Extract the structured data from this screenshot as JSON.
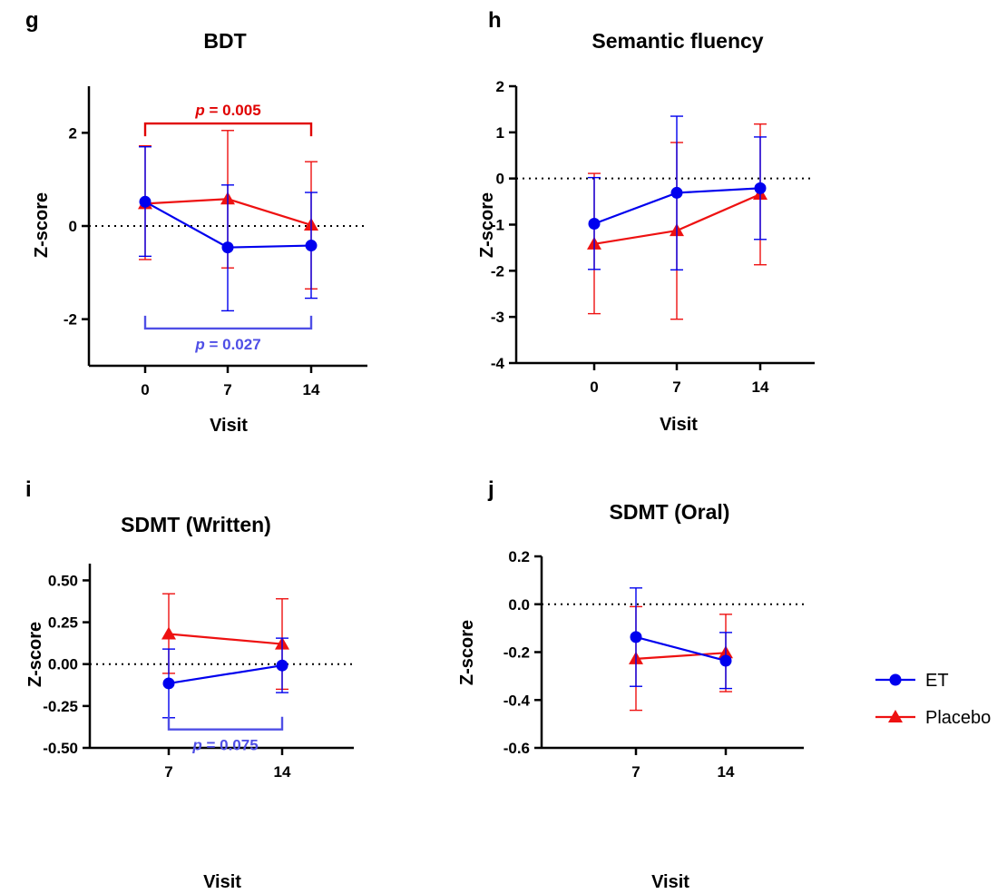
{
  "colors": {
    "et": "#0000ee",
    "placebo": "#ee1111",
    "annotation_red": "#e00000",
    "annotation_blue": "#4f4fe6"
  },
  "legend": [
    {
      "name": "ET",
      "marker": "circle",
      "color": "#0000ee"
    },
    {
      "name": "Placebo",
      "marker": "triangle",
      "color": "#ee1111"
    }
  ],
  "chart_data": [
    {
      "panel": "g",
      "type": "line",
      "title": "BDT",
      "xlabel": "Visit",
      "ylabel": "Z-score",
      "categories": [
        "0",
        "7",
        "14"
      ],
      "ylim": [
        -3,
        3
      ],
      "yticks": [
        "-2",
        "0",
        "2"
      ],
      "ytick_values": [
        -2,
        0,
        2
      ],
      "reference_line": 0,
      "series": [
        {
          "name": "ET",
          "marker": "circle",
          "values": [
            0.52,
            -0.46,
            -0.42
          ],
          "err_low": [
            -0.65,
            -1.82,
            -1.55
          ],
          "err_high": [
            1.7,
            0.88,
            0.72
          ]
        },
        {
          "name": "Placebo",
          "marker": "triangle",
          "values": [
            0.48,
            0.58,
            0.02
          ],
          "err_low": [
            -0.72,
            -0.9,
            -1.35
          ],
          "err_high": [
            1.72,
            2.05,
            1.38
          ]
        }
      ],
      "annotations": [
        {
          "text": "p = 0.005",
          "series": "Placebo",
          "from": "0",
          "to": "14",
          "position": "top",
          "level": 2.2
        },
        {
          "text": "p = 0.027",
          "series": "ET",
          "from": "0",
          "to": "14",
          "position": "bottom",
          "level": -2.2
        }
      ]
    },
    {
      "panel": "h",
      "type": "line",
      "title": "Semantic fluency",
      "xlabel": "Visit",
      "ylabel": "Z-score",
      "categories": [
        "0",
        "7",
        "14"
      ],
      "ylim": [
        -4,
        2
      ],
      "yticks": [
        "-4",
        "-3",
        "-2",
        "-1",
        "0",
        "1",
        "2"
      ],
      "ytick_values": [
        -4,
        -3,
        -2,
        -1,
        0,
        1,
        2
      ],
      "reference_line": 0,
      "series": [
        {
          "name": "ET",
          "marker": "circle",
          "values": [
            -0.98,
            -0.31,
            -0.21
          ],
          "err_low": [
            -1.97,
            -1.98,
            -1.32
          ],
          "err_high": [
            0.02,
            1.35,
            0.9
          ]
        },
        {
          "name": "Placebo",
          "marker": "triangle",
          "values": [
            -1.42,
            -1.13,
            -0.34
          ],
          "err_low": [
            -2.93,
            -3.05,
            -1.87
          ],
          "err_high": [
            0.11,
            0.78,
            1.18
          ]
        }
      ],
      "annotations": []
    },
    {
      "panel": "i",
      "type": "line",
      "title": "SDMT (Written)",
      "xlabel": "Visit",
      "ylabel": "Z-score",
      "categories": [
        "7",
        "14"
      ],
      "ylim": [
        -0.5,
        0.6
      ],
      "yticks": [
        "-0.50",
        "-0.25",
        "0.00",
        "0.25",
        "0.50"
      ],
      "ytick_values": [
        -0.5,
        -0.25,
        0,
        0.25,
        0.5
      ],
      "reference_line": 0,
      "series": [
        {
          "name": "ET",
          "marker": "circle",
          "values": [
            -0.115,
            -0.008
          ],
          "err_low": [
            -0.32,
            -0.17
          ],
          "err_high": [
            0.09,
            0.155
          ]
        },
        {
          "name": "Placebo",
          "marker": "triangle",
          "values": [
            0.18,
            0.12
          ],
          "err_low": [
            -0.055,
            -0.15
          ],
          "err_high": [
            0.42,
            0.39
          ]
        }
      ],
      "annotations": [
        {
          "text": "p = 0.075",
          "series": "ET",
          "from": "7",
          "to": "14",
          "position": "bottom",
          "level": -0.39
        }
      ]
    },
    {
      "panel": "j",
      "type": "line",
      "title": "SDMT (Oral)",
      "xlabel": "Visit",
      "ylabel": "Z-score",
      "categories": [
        "7",
        "14"
      ],
      "ylim": [
        -0.6,
        0.2
      ],
      "yticks": [
        "-0.6",
        "-0.4",
        "-0.2",
        "0.0",
        "0.2"
      ],
      "ytick_values": [
        -0.6,
        -0.4,
        -0.2,
        0,
        0.2
      ],
      "reference_line": 0,
      "series": [
        {
          "name": "ET",
          "marker": "circle",
          "values": [
            -0.137,
            -0.236
          ],
          "err_low": [
            -0.343,
            -0.352
          ],
          "err_high": [
            0.068,
            -0.118
          ]
        },
        {
          "name": "Placebo",
          "marker": "triangle",
          "values": [
            -0.228,
            -0.203
          ],
          "err_low": [
            -0.443,
            -0.365
          ],
          "err_high": [
            -0.01,
            -0.042
          ]
        }
      ],
      "annotations": []
    }
  ]
}
